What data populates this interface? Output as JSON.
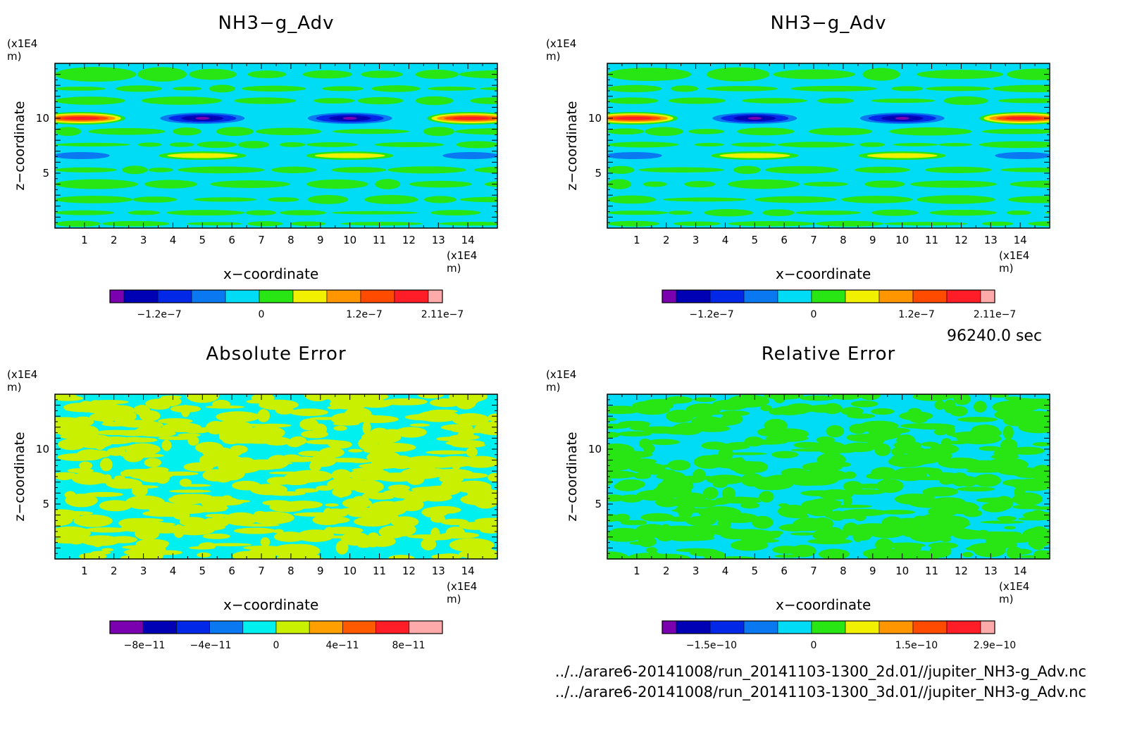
{
  "panels": [
    {
      "title": "NH3−g_Adv",
      "yunit": "(x1E4 m)",
      "xunit": "(x1E4 m)",
      "xlabel": "x−coordinate",
      "ylabel": "z−coordinate",
      "colorbar_labels": [
        "−1.2e−7",
        "0",
        "1.2e−7",
        "2.11e−7"
      ],
      "colorbar_colors": [
        "#7a00b0",
        "#0000b4",
        "#0028e6",
        "#0a78f0",
        "#00dcf5",
        "#28e614",
        "#f0f000",
        "#ff9600",
        "#ff4b00",
        "#ff1e28",
        "#ffaaaa"
      ]
    },
    {
      "title": "NH3−g_Adv",
      "yunit": "(x1E4 m)",
      "xunit": "(x1E4 m)",
      "xlabel": "x−coordinate",
      "ylabel": "z−coordinate",
      "colorbar_labels": [
        "−1.2e−7",
        "0",
        "1.2e−7",
        "2.11e−7"
      ],
      "colorbar_colors": [
        "#7a00b0",
        "#0000b4",
        "#0028e6",
        "#0a78f0",
        "#00dcf5",
        "#28e614",
        "#f0f000",
        "#ff9600",
        "#ff4b00",
        "#ff1e28",
        "#ffaaaa"
      ]
    },
    {
      "title": "Absolute Error",
      "yunit": "(x1E4 m)",
      "xunit": "(x1E4 m)",
      "xlabel": "x−coordinate",
      "ylabel": "z−coordinate",
      "colorbar_labels": [
        "−8e−11",
        "−4e−11",
        "0",
        "4e−11",
        "8e−11"
      ],
      "colorbar_colors": [
        "#7a00b0",
        "#0000b4",
        "#0028e6",
        "#0a78f0",
        "#00f0f0",
        "#c8f000",
        "#ffa000",
        "#ff5a00",
        "#ff1e28",
        "#ffaaaa"
      ]
    },
    {
      "title": "Relative Error",
      "yunit": "(x1E4 m)",
      "xunit": "(x1E4 m)",
      "xlabel": "x−coordinate",
      "ylabel": "z−coordinate",
      "colorbar_labels": [
        "−1.5e−10",
        "0",
        "1.5e−10",
        "2.9e−10"
      ],
      "colorbar_colors": [
        "#7a00b0",
        "#0000b4",
        "#0028e6",
        "#0a78f0",
        "#00dcf5",
        "#28e614",
        "#f0f000",
        "#ff9600",
        "#ff4b00",
        "#ff1e28",
        "#ffaaaa"
      ]
    }
  ],
  "time_label": "96240.0 sec",
  "footer_lines": [
    "../../arare6-20141008/run_20141103-1300_2d.01//jupiter_NH3-g_Adv.nc",
    "../../arare6-20141008/run_20141103-1300_3d.01//jupiter_NH3-g_Adv.nc"
  ],
  "chart_data": [
    {
      "type": "heatmap",
      "title": "NH3−g_Adv",
      "xlabel": "x−coordinate",
      "ylabel": "z−coordinate",
      "x_ticks": [
        1,
        2,
        3,
        4,
        5,
        6,
        7,
        8,
        9,
        10,
        11,
        12,
        13,
        14
      ],
      "y_ticks": [
        5,
        10
      ],
      "xlim": [
        0,
        15
      ],
      "ylim": [
        0,
        15
      ],
      "colorbar_ticks": [
        "−1.2e−7",
        "0",
        "1.2e−7",
        "2.11e−7"
      ],
      "features": [
        {
          "x": 0.9,
          "z": 10,
          "value": 2.11e-07
        },
        {
          "x": 14.1,
          "z": 10,
          "value": 2.11e-07
        },
        {
          "x": 5,
          "z": 10,
          "value": -1.2e-07
        },
        {
          "x": 10,
          "z": 10,
          "value": -1.2e-07
        },
        {
          "x": 5,
          "z": 6.6,
          "value": 8e-08
        },
        {
          "x": 10,
          "z": 6.6,
          "value": 8e-08
        },
        {
          "x": 0.9,
          "z": 6.6,
          "value": -6e-08
        },
        {
          "x": 14.1,
          "z": 6.6,
          "value": -6e-08
        }
      ]
    },
    {
      "type": "heatmap",
      "title": "NH3−g_Adv",
      "xlabel": "x−coordinate",
      "ylabel": "z−coordinate",
      "x_ticks": [
        1,
        2,
        3,
        4,
        5,
        6,
        7,
        8,
        9,
        10,
        11,
        12,
        13,
        14
      ],
      "y_ticks": [
        5,
        10
      ],
      "xlim": [
        0,
        15
      ],
      "ylim": [
        0,
        15
      ],
      "colorbar_ticks": [
        "−1.2e−7",
        "0",
        "1.2e−7",
        "2.11e−7"
      ],
      "features": [
        {
          "x": 0.9,
          "z": 10,
          "value": 2.11e-07
        },
        {
          "x": 14.1,
          "z": 10,
          "value": 2.11e-07
        },
        {
          "x": 5,
          "z": 10,
          "value": -1.2e-07
        },
        {
          "x": 10,
          "z": 10,
          "value": -1.2e-07
        },
        {
          "x": 5,
          "z": 6.6,
          "value": 8e-08
        },
        {
          "x": 10,
          "z": 6.6,
          "value": 8e-08
        },
        {
          "x": 0.9,
          "z": 6.6,
          "value": -6e-08
        },
        {
          "x": 14.1,
          "z": 6.6,
          "value": -6e-08
        }
      ]
    },
    {
      "type": "heatmap",
      "title": "Absolute Error",
      "xlabel": "x−coordinate",
      "ylabel": "z−coordinate",
      "x_ticks": [
        1,
        2,
        3,
        4,
        5,
        6,
        7,
        8,
        9,
        10,
        11,
        12,
        13,
        14
      ],
      "y_ticks": [
        5,
        10
      ],
      "xlim": [
        0,
        15
      ],
      "ylim": [
        0,
        15
      ],
      "colorbar_ticks": [
        "−8e−11",
        "−4e−11",
        "0",
        "4e−11",
        "8e−11"
      ],
      "value_range": [
        -1e-11,
        2e-11
      ]
    },
    {
      "type": "heatmap",
      "title": "Relative Error",
      "xlabel": "x−coordinate",
      "ylabel": "z−coordinate",
      "x_ticks": [
        1,
        2,
        3,
        4,
        5,
        6,
        7,
        8,
        9,
        10,
        11,
        12,
        13,
        14
      ],
      "y_ticks": [
        5,
        10
      ],
      "xlim": [
        0,
        15
      ],
      "ylim": [
        0,
        15
      ],
      "colorbar_ticks": [
        "−1.5e−10",
        "0",
        "1.5e−10",
        "2.9e−10"
      ],
      "value_range": [
        -2e-11,
        3e-11
      ]
    }
  ]
}
